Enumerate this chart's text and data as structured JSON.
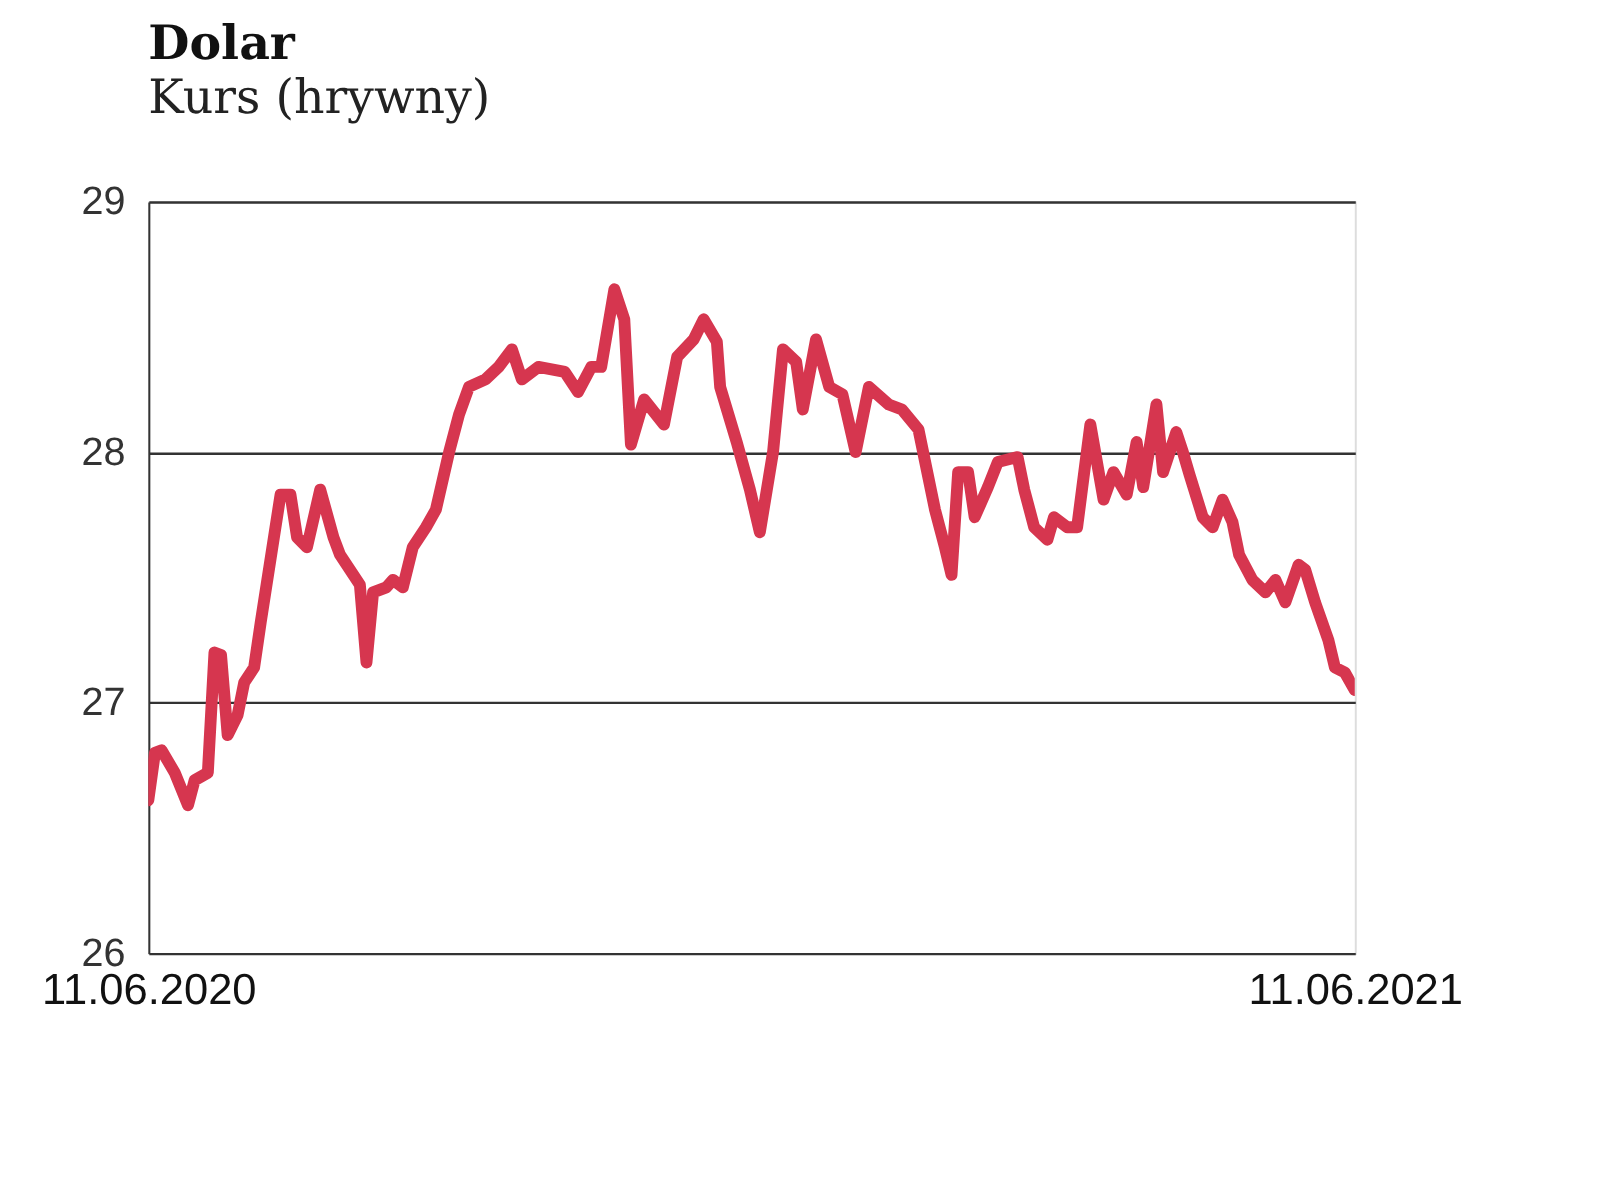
{
  "chart_data": {
    "type": "line",
    "title": "Dolar",
    "subtitle": "Kurs (hrywny)",
    "x": [
      "2020-06-11",
      "2020-06-13",
      "2020-06-15",
      "2020-06-19",
      "2020-06-23",
      "2020-06-25",
      "2020-06-29",
      "2020-07-01",
      "2020-07-03",
      "2020-07-05",
      "2020-07-08",
      "2020-07-10",
      "2020-07-13",
      "2020-07-15",
      "2020-07-21",
      "2020-07-24",
      "2020-07-26",
      "2020-07-29",
      "2020-08-02",
      "2020-08-06",
      "2020-08-08",
      "2020-08-11",
      "2020-08-14",
      "2020-08-16",
      "2020-08-18",
      "2020-08-22",
      "2020-08-24",
      "2020-08-27",
      "2020-08-30",
      "2020-09-03",
      "2020-09-06",
      "2020-09-10",
      "2020-09-13",
      "2020-09-16",
      "2020-09-21",
      "2020-09-25",
      "2020-09-29",
      "2020-10-02",
      "2020-10-07",
      "2020-10-15",
      "2020-10-19",
      "2020-10-23",
      "2020-10-26",
      "2020-10-30",
      "2020-11-02",
      "2020-11-04",
      "2020-11-08",
      "2020-11-14",
      "2020-11-18",
      "2020-11-23",
      "2020-11-26",
      "2020-11-30",
      "2020-12-01",
      "2020-12-06",
      "2020-12-10",
      "2020-12-13",
      "2020-12-17",
      "2020-12-20",
      "2020-12-24",
      "2020-12-26",
      "2020-12-30",
      "2021-01-03",
      "2021-01-07",
      "2021-01-11",
      "2021-01-15",
      "2021-01-21",
      "2021-01-25",
      "2021-01-30",
      "2021-02-04",
      "2021-02-07",
      "2021-02-09",
      "2021-02-11",
      "2021-02-14",
      "2021-02-16",
      "2021-02-20",
      "2021-02-23",
      "2021-03-01",
      "2021-03-03",
      "2021-03-06",
      "2021-03-10",
      "2021-03-12",
      "2021-03-16",
      "2021-03-19",
      "2021-03-23",
      "2021-03-27",
      "2021-03-30",
      "2021-04-03",
      "2021-04-06",
      "2021-04-08",
      "2021-04-12",
      "2021-04-14",
      "2021-04-18",
      "2021-04-20",
      "2021-04-22",
      "2021-04-26",
      "2021-04-29",
      "2021-05-02",
      "2021-05-05",
      "2021-05-07",
      "2021-05-11",
      "2021-05-15",
      "2021-05-18",
      "2021-05-21",
      "2021-05-25",
      "2021-05-27",
      "2021-05-30",
      "2021-06-03",
      "2021-06-05",
      "2021-06-08",
      "2021-06-11"
    ],
    "series": [
      {
        "color": "#d6364f",
        "values": [
          26.61,
          26.8,
          26.81,
          26.72,
          26.59,
          26.69,
          26.72,
          27.2,
          27.19,
          26.87,
          26.95,
          27.08,
          27.14,
          27.32,
          27.83,
          27.83,
          27.66,
          27.62,
          27.85,
          27.66,
          27.59,
          27.53,
          27.47,
          27.16,
          27.44,
          27.46,
          27.49,
          27.46,
          27.62,
          27.7,
          27.77,
          28.0,
          28.15,
          28.26,
          28.29,
          28.34,
          28.41,
          28.29,
          28.34,
          28.32,
          28.24,
          28.34,
          28.34,
          28.65,
          28.53,
          28.03,
          28.21,
          28.11,
          28.38,
          28.45,
          28.53,
          28.44,
          28.26,
          28.04,
          27.85,
          27.68,
          28.0,
          28.41,
          28.36,
          28.17,
          28.45,
          28.26,
          28.23,
          28.0,
          28.26,
          28.19,
          28.17,
          28.09,
          27.77,
          27.62,
          27.51,
          27.92,
          27.92,
          27.74,
          27.86,
          27.96,
          27.98,
          27.85,
          27.7,
          27.65,
          27.74,
          27.7,
          27.7,
          28.11,
          27.81,
          27.92,
          27.83,
          28.04,
          27.86,
          28.19,
          27.92,
          28.08,
          28.0,
          27.91,
          27.74,
          27.7,
          27.81,
          27.72,
          27.59,
          27.49,
          27.44,
          27.49,
          27.4,
          27.55,
          27.53,
          27.4,
          27.25,
          27.14,
          27.12,
          27.05
        ]
      }
    ],
    "xlim": [
      "2020-06-11",
      "2021-06-11"
    ],
    "xticks": [
      {
        "value": "2020-06-11",
        "label": "11.06.2020"
      },
      {
        "value": "2021-06-11",
        "label": "11.06.2021"
      }
    ],
    "ylim": [
      26,
      29
    ],
    "yticks": [
      26,
      27,
      28,
      29
    ],
    "grid": "y",
    "marker": "none",
    "line_style": "solid"
  }
}
